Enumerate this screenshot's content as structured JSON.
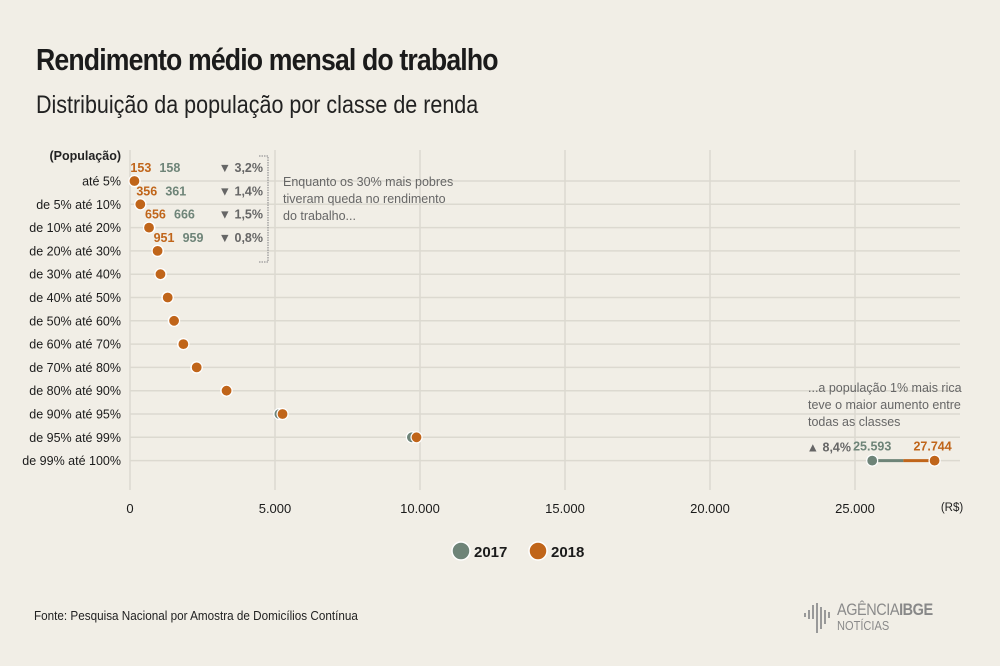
{
  "header": {
    "title": "Rendimento médio mensal do trabalho",
    "subtitle": "Distribuição da população por classe de renda"
  },
  "colors": {
    "y2017": "#6e8478",
    "y2018": "#c0651a",
    "grid": "#dcd9d0",
    "text": "#222222",
    "annotation": "#666666"
  },
  "chart_data": {
    "type": "scatter",
    "title": "Rendimento médio mensal do trabalho",
    "subtitle": "Distribuição da população por classe de renda",
    "ylabel": "(População)",
    "xlabel": "(R$)",
    "xlim": [
      0,
      27500
    ],
    "x_ticks": [
      0,
      5000,
      10000,
      15000,
      20000,
      25000
    ],
    "x_tick_labels": [
      "0",
      "5.000",
      "10.000",
      "15.000",
      "20.000",
      "25.000"
    ],
    "grid": true,
    "legend": {
      "placement": "bottom-center",
      "entries": [
        "2017",
        "2018"
      ]
    },
    "categories": [
      "até 5%",
      "de 5% até 10%",
      "de 10% até 20%",
      "de 20% até 30%",
      "de 30% até 40%",
      "de 40% até 50%",
      "de 50% até 60%",
      "de 60% até 70%",
      "de 70% até 80%",
      "de 80% até 90%",
      "de 90% até 95%",
      "de 95% até 99%",
      "de 99% até 100%"
    ],
    "series": [
      {
        "name": "2017",
        "values": [
          158,
          361,
          666,
          959,
          1060,
          1290,
          1510,
          1830,
          2290,
          3320,
          5150,
          9720,
          25593
        ]
      },
      {
        "name": "2018",
        "values": [
          153,
          356,
          656,
          951,
          1050,
          1300,
          1520,
          1840,
          2300,
          3330,
          5260,
          9880,
          27744
        ]
      }
    ],
    "labels": [
      {
        "category": "até 5%",
        "v2018": "153",
        "v2017": "158",
        "change": "▼ 3,2%"
      },
      {
        "category": "de 5% até 10%",
        "v2018": "356",
        "v2017": "361",
        "change": "▼ 1,4%"
      },
      {
        "category": "de 10% até 20%",
        "v2018": "656",
        "v2017": "666",
        "change": "▼ 1,5%"
      },
      {
        "category": "de 20% até 30%",
        "v2018": "951",
        "v2017": "959",
        "change": "▼ 0,8%"
      }
    ],
    "top_label": {
      "v2017": "25.593",
      "v2018": "27.744",
      "change": "▲ 8,4%"
    },
    "annotations": [
      "Enquanto os 30% mais pobres tiveram queda no rendimento do trabalho...",
      "...a população 1% mais rica teve o maior aumento entre todas as classes"
    ],
    "annotation_lines": {
      "poor": [
        "Enquanto os 30% mais pobres",
        "tiveram queda no rendimento",
        "do trabalho..."
      ],
      "rich": [
        "...a população 1% mais rica",
        "teve o maior aumento entre",
        "todas as classes"
      ]
    }
  },
  "footer": {
    "source": "Fonte:  Pesquisa Nacional por Amostra de Domicílios Contínua",
    "logo_main": "AGÊNCIA",
    "logo_bold": "IBGE",
    "logo_sub": "NOTÍCIAS"
  }
}
